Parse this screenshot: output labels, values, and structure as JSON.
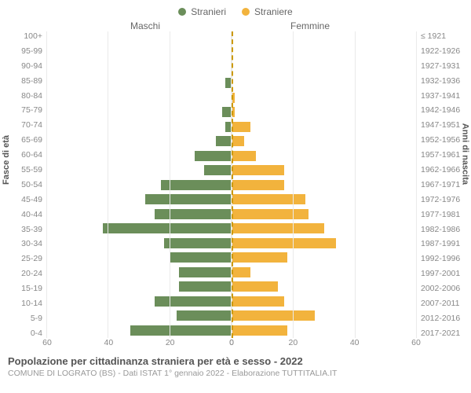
{
  "legend": {
    "male_label": "Stranieri",
    "female_label": "Straniere",
    "male_color": "#6b8e5a",
    "female_color": "#f2b33d"
  },
  "header": {
    "male": "Maschi",
    "female": "Femmine"
  },
  "axis": {
    "left_label": "Fasce di età",
    "right_label": "Anni di nascita",
    "max": 60,
    "tick_step": 20,
    "grid_color": "#eaeaea",
    "center_dash_color": "#cc9900"
  },
  "bands": [
    {
      "age": "100+",
      "birth": "≤ 1921",
      "m": 0,
      "f": 0
    },
    {
      "age": "95-99",
      "birth": "1922-1926",
      "m": 0,
      "f": 0
    },
    {
      "age": "90-94",
      "birth": "1927-1931",
      "m": 0,
      "f": 0
    },
    {
      "age": "85-89",
      "birth": "1932-1936",
      "m": 2,
      "f": 0
    },
    {
      "age": "80-84",
      "birth": "1937-1941",
      "m": 0,
      "f": 1
    },
    {
      "age": "75-79",
      "birth": "1942-1946",
      "m": 3,
      "f": 1
    },
    {
      "age": "70-74",
      "birth": "1947-1951",
      "m": 2,
      "f": 6
    },
    {
      "age": "65-69",
      "birth": "1952-1956",
      "m": 5,
      "f": 4
    },
    {
      "age": "60-64",
      "birth": "1957-1961",
      "m": 12,
      "f": 8
    },
    {
      "age": "55-59",
      "birth": "1962-1966",
      "m": 9,
      "f": 17
    },
    {
      "age": "50-54",
      "birth": "1967-1971",
      "m": 23,
      "f": 17
    },
    {
      "age": "45-49",
      "birth": "1972-1976",
      "m": 28,
      "f": 24
    },
    {
      "age": "40-44",
      "birth": "1977-1981",
      "m": 25,
      "f": 25
    },
    {
      "age": "35-39",
      "birth": "1982-1986",
      "m": 42,
      "f": 30
    },
    {
      "age": "30-34",
      "birth": "1987-1991",
      "m": 22,
      "f": 34
    },
    {
      "age": "25-29",
      "birth": "1992-1996",
      "m": 20,
      "f": 18
    },
    {
      "age": "20-24",
      "birth": "1997-2001",
      "m": 17,
      "f": 6
    },
    {
      "age": "15-19",
      "birth": "2002-2006",
      "m": 17,
      "f": 15
    },
    {
      "age": "10-14",
      "birth": "2007-2011",
      "m": 25,
      "f": 17
    },
    {
      "age": "5-9",
      "birth": "2012-2016",
      "m": 18,
      "f": 27
    },
    {
      "age": "0-4",
      "birth": "2017-2021",
      "m": 33,
      "f": 18
    }
  ],
  "x_ticks_left": [
    60,
    40,
    20,
    0
  ],
  "x_ticks_right": [
    0,
    20,
    40,
    60
  ],
  "footer": {
    "title": "Popolazione per cittadinanza straniera per età e sesso - 2022",
    "subtitle": "COMUNE DI LOGRATO (BS) - Dati ISTAT 1° gennaio 2022 - Elaborazione TUTTITALIA.IT"
  },
  "typography": {
    "title_fontsize": 13,
    "subtitle_fontsize": 10.5,
    "tick_fontsize": 10.5,
    "axis_label_fontsize": 11
  }
}
